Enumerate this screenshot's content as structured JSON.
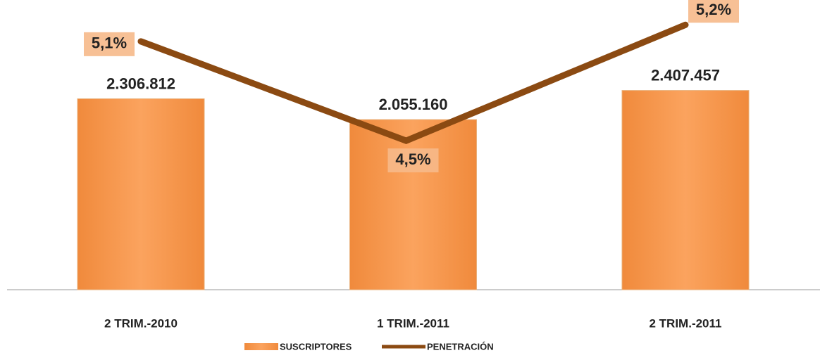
{
  "chart_data": {
    "type": "bar_line",
    "categories": [
      "2 TRIM.-2010",
      "1 TRIM.-2011",
      "2 TRIM.-2011"
    ],
    "series": [
      {
        "name": "SUSCRIPTORES",
        "type": "bar",
        "color": "#f79646",
        "values": [
          2306812,
          2055160,
          2407457
        ],
        "value_labels": [
          "2.306.812",
          "2.055.160",
          "2.407.457"
        ]
      },
      {
        "name": "PENETRACIÓN",
        "type": "line",
        "axis": "y2",
        "color": "#8b4a12",
        "values": [
          5.1,
          4.5,
          5.2
        ],
        "value_labels": [
          "5,1%",
          "4,5%",
          "5,2%"
        ]
      }
    ],
    "ylim": [
      0,
      3500000
    ],
    "y2lim": [
      3.6,
      5.35
    ],
    "legend": "bottom"
  }
}
